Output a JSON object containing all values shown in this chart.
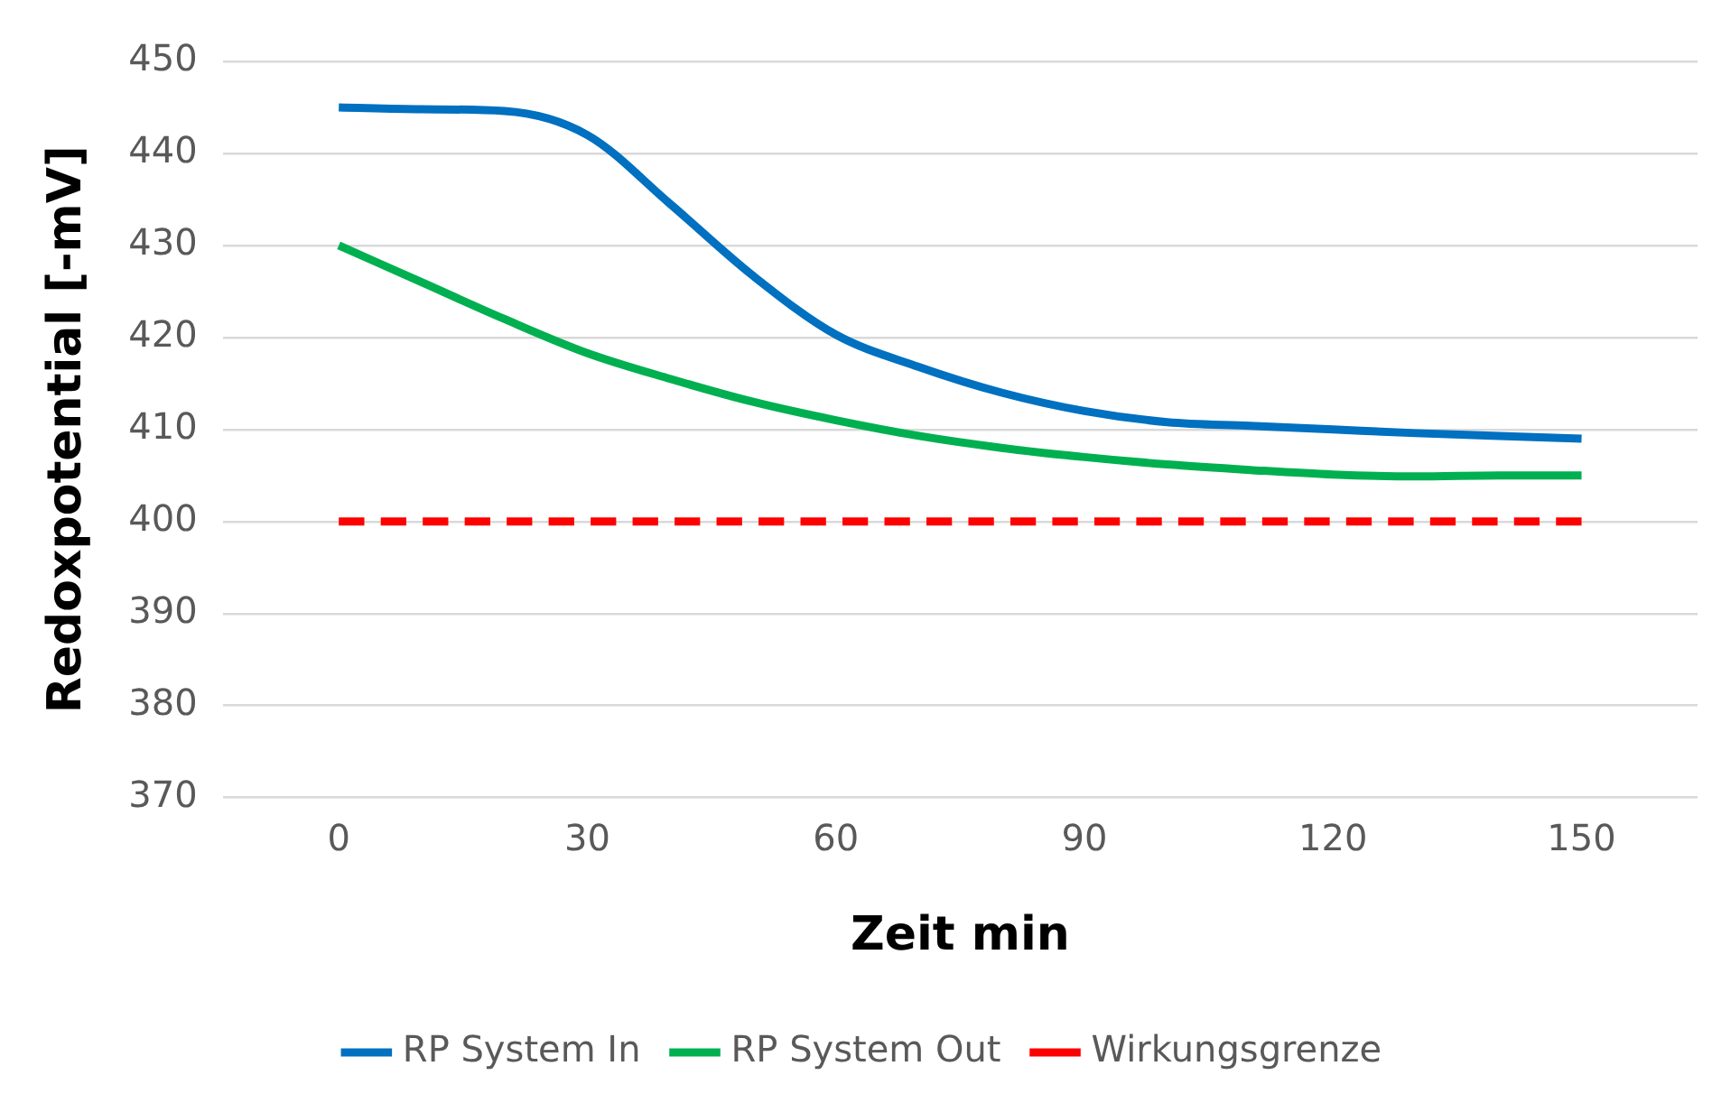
{
  "chart_data": {
    "type": "line",
    "xlabel": "Zeit min",
    "ylabel": "Redoxpotential [-mV]",
    "xlim": [
      -14,
      164
    ],
    "xticks": [
      0,
      30,
      60,
      90,
      120,
      150
    ],
    "ylim": [
      370,
      450
    ],
    "yticks": [
      370,
      380,
      390,
      400,
      410,
      420,
      430,
      440,
      450
    ],
    "grid": "y",
    "legend": "bottom",
    "marker": "none",
    "series": [
      {
        "name": "RP System In",
        "color": "#0070c0",
        "line_style": "solid",
        "x": [
          0,
          10,
          20,
          30,
          40,
          50,
          60,
          70,
          80,
          90,
          100,
          110,
          120,
          130,
          140,
          150
        ],
        "values": [
          445,
          444.8,
          444.6,
          442,
          434.5,
          426.7,
          420.3,
          416.8,
          414,
          412,
          410.8,
          410.4,
          410,
          409.6,
          409.3,
          409
        ]
      },
      {
        "name": "RP System Out",
        "color": "#00b050",
        "line_style": "solid",
        "x": [
          0,
          10,
          20,
          30,
          40,
          50,
          60,
          70,
          80,
          90,
          100,
          110,
          120,
          130,
          140,
          150
        ],
        "values": [
          430,
          426,
          422,
          418.3,
          415.5,
          413,
          411,
          409.3,
          408,
          407,
          406.2,
          405.6,
          405.1,
          404.9,
          405,
          405
        ]
      },
      {
        "name": "Wirkungsgrenze",
        "color": "#ff0000",
        "line_style": "dashed",
        "x": [
          0,
          150
        ],
        "values": [
          400,
          400
        ]
      }
    ]
  }
}
